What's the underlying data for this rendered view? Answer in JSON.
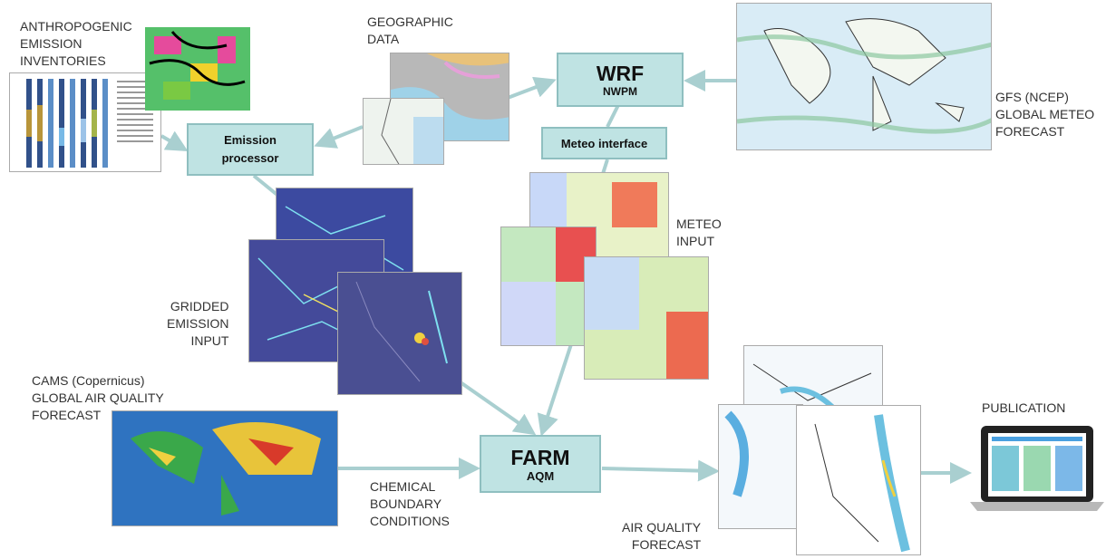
{
  "labels": {
    "anthropogenic": "ANTHROPOGENIC\nEMISSION\nINVENTORIES",
    "geographic": "GEOGRAPHIC\nDATA",
    "gfs": "GFS (NCEP)\nGLOBAL METEO\nFORECAST",
    "meteo_input": "METEO\nINPUT",
    "gridded": "GRIDDED\nEMISSION\nINPUT",
    "cams": "CAMS (Copernicus)\nGLOBAL AIR QUALITY\nFORECAST",
    "chemical": "CHEMICAL\nBOUNDARY\nCONDITIONS",
    "aq_forecast": "AIR QUALITY\nFORECAST",
    "publication": "PUBLICATION"
  },
  "boxes": {
    "wrf_title": "WRF",
    "wrf_sub": "NWPM",
    "emission_line1": "Emission",
    "emission_line2": "processor",
    "meteo_interface": "Meteo interface",
    "farm_title": "FARM",
    "farm_sub": "AQM"
  },
  "colors": {
    "box_fill": "#bfe3e3",
    "arrow": "#a9cfd0"
  },
  "icons": [
    "laptop-icon"
  ]
}
